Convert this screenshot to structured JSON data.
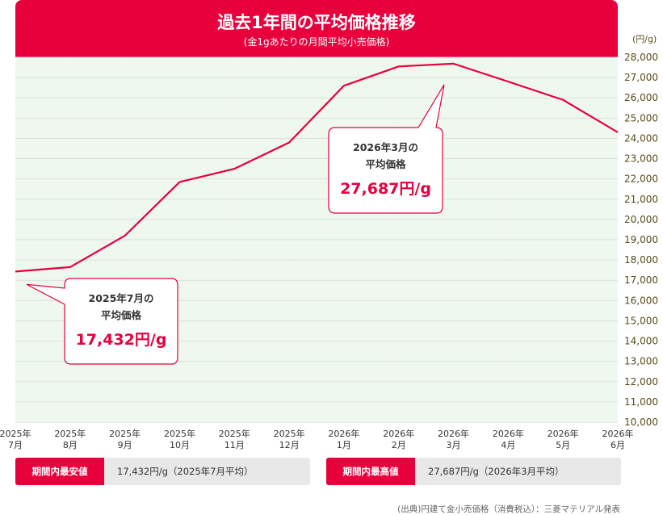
{
  "chart_data": {
    "type": "line",
    "title": "過去1年間の平均価格推移",
    "subtitle": "(金1gあたりの月間平均小売価格)",
    "unit": "(円/g)",
    "ylim": [
      10000,
      28000
    ],
    "y_ticks": [
      "10,000",
      "11,000",
      "12,000",
      "13,000",
      "14,000",
      "15,000",
      "16,000",
      "17,000",
      "18,000",
      "19,000",
      "20,000",
      "21,000",
      "22,000",
      "23,000",
      "24,000",
      "25,000",
      "26,000",
      "27,000",
      "28,000"
    ],
    "categories": [
      {
        "year": "2025年",
        "month": "7月"
      },
      {
        "year": "2025年",
        "month": "8月"
      },
      {
        "year": "2025年",
        "month": "9月"
      },
      {
        "year": "2025年",
        "month": "10月"
      },
      {
        "year": "2025年",
        "month": "11月"
      },
      {
        "year": "2025年",
        "month": "12月"
      },
      {
        "year": "2026年",
        "month": "1月"
      },
      {
        "year": "2026年",
        "month": "2月"
      },
      {
        "year": "2026年",
        "month": "3月"
      },
      {
        "year": "2026年",
        "month": "4月"
      },
      {
        "year": "2026年",
        "month": "5月"
      },
      {
        "year": "2026年",
        "month": "6月"
      }
    ],
    "values": [
      17432,
      17650,
      19200,
      21850,
      22500,
      23800,
      26600,
      27550,
      27687,
      26800,
      25900,
      24300
    ],
    "grid": true,
    "line_color": "#e8003d",
    "plot_bg_colors": [
      "#ffffff",
      "#eef8ee"
    ]
  },
  "callouts": {
    "low": {
      "line1": "2025年7月の",
      "line2": "平均価格",
      "value": "17,432円/g",
      "index": 0
    },
    "high": {
      "line1": "2026年3月の",
      "line2": "平均価格",
      "value": "27,687円/g",
      "index": 8
    }
  },
  "summary": {
    "low": {
      "label": "期間内最安値",
      "value": "17,432円/g（2025年7月平均）"
    },
    "high": {
      "label": "期間内最高値",
      "value": "27,687円/g（2026年3月平均）"
    }
  },
  "source": "(出典)円建て金小売価格（消費税込）：三菱マテリアル発表",
  "colors": {
    "accent": "#e8003d",
    "tick_text": "#5a4a1a",
    "grid": "#dddddd"
  }
}
